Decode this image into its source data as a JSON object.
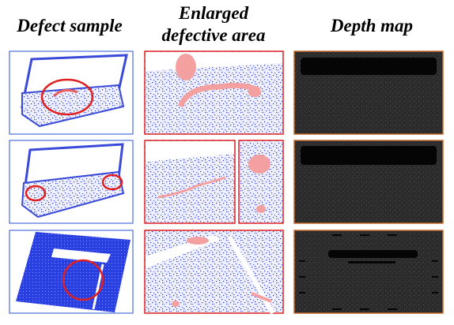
{
  "headers": [
    "Defect sample",
    [
      "Enlarged",
      "defective area"
    ],
    "Depth map"
  ]
}
